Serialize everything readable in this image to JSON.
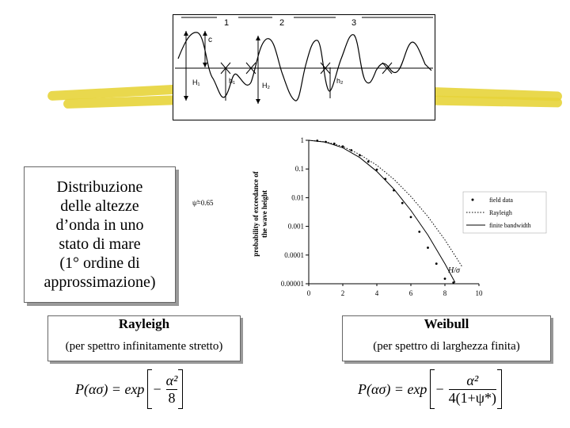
{
  "wave_figure": {
    "section_labels": [
      "1",
      "2",
      "3"
    ],
    "labels": {
      "c": "c",
      "h1_big": "H₁",
      "h1_small": "h₁",
      "h2_big": "H₂",
      "h2_small": "h₂"
    }
  },
  "title": {
    "lines": [
      "Distribuzione",
      "delle altezze",
      "d’onda in uno",
      "stato di mare",
      "(1° ordine di",
      "approssimazione)"
    ]
  },
  "chart": {
    "ylabel_line1": "probability of exceedance of",
    "ylabel_line2": "the wave height",
    "xlabel": "H/σ",
    "annotation": "ψ̃=0.65",
    "yticks": [
      "0.00001",
      "0.0001",
      "0.001",
      "0.01",
      "0.1",
      "1"
    ],
    "xticks": [
      "0",
      "2",
      "4",
      "6",
      "8",
      "10"
    ],
    "legend": [
      "field data",
      "Rayleigh",
      "finite bandwidth"
    ]
  },
  "rayleigh": {
    "title": "Rayleigh",
    "subtitle": "(per spettro infinitamente stretto)",
    "formula_lhs": "P(ασ) = exp",
    "num": "α²",
    "den": "8"
  },
  "weibull": {
    "title": "Weibull",
    "subtitle": "(per spettro di larghezza finita)",
    "formula_lhs": "P(ασ) = exp",
    "num": "α²",
    "den": "4(1+ψ*)"
  },
  "chart_data": {
    "type": "scatter",
    "xlabel": "H/σ",
    "ylabel": "probability of exceedance of the wave height",
    "xlim": [
      0,
      10
    ],
    "ylim": [
      1e-05,
      1
    ],
    "yscale": "log",
    "series": [
      {
        "name": "field data",
        "x": [
          0.5,
          1.0,
          1.5,
          2.0,
          2.5,
          3.0,
          3.5,
          4.0,
          4.5,
          5.0,
          5.5,
          6.0,
          6.5,
          7.0,
          7.5,
          8.0,
          8.5
        ],
        "y": [
          0.97,
          0.88,
          0.76,
          0.61,
          0.45,
          0.3,
          0.18,
          0.095,
          0.045,
          0.018,
          0.0065,
          0.0021,
          0.00065,
          0.00018,
          5e-05,
          1.5e-05,
          1.1e-05
        ]
      },
      {
        "name": "Rayleigh",
        "x": [
          0,
          1,
          2,
          3,
          4,
          5,
          6,
          7,
          8,
          9
        ],
        "y": [
          1,
          0.88,
          0.61,
          0.32,
          0.135,
          0.044,
          0.011,
          0.0022,
          0.00034,
          4e-05
        ]
      },
      {
        "name": "finite bandwidth",
        "x": [
          0,
          1,
          2,
          3,
          4,
          5,
          6,
          7,
          8,
          8.6
        ],
        "y": [
          1,
          0.86,
          0.55,
          0.25,
          0.082,
          0.02,
          0.0036,
          0.0005,
          5e-05,
          1.1e-05
        ]
      }
    ]
  }
}
